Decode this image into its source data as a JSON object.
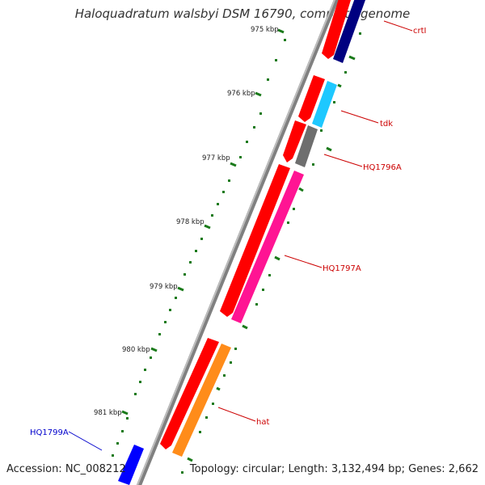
{
  "title": "Haloquadratum walsbyi DSM 16790, complete genome",
  "footer": {
    "accession": "Accession: NC_008212",
    "topology": "Topology: circular; Length: 3,132,494 bp; Genes: 2,662"
  },
  "ticks": [
    "975 kbp",
    "976 kbp",
    "977 kbp",
    "978 kbp",
    "979 kbp",
    "980 kbp",
    "981 kbp"
  ],
  "gene_labels": [
    {
      "text": "crtI",
      "color": "#cc0000"
    },
    {
      "text": "tdk",
      "color": "#cc0000"
    },
    {
      "text": "HQ1796A",
      "color": "#cc0000"
    },
    {
      "text": "HQ1797A",
      "color": "#cc0000"
    },
    {
      "text": "hat",
      "color": "#cc0000"
    },
    {
      "text": "HQ1799A",
      "color": "#0000cc"
    }
  ],
  "colors": {
    "backbone": "#808080",
    "tick_mark": "#1a7a1a",
    "cds": "#ff0000",
    "navy": "#000080",
    "cyan": "#1ec8ff",
    "gray": "#6e6e6e",
    "magenta": "#ff1493",
    "orange": "#ff8c1a",
    "blue": "#0000ff"
  }
}
